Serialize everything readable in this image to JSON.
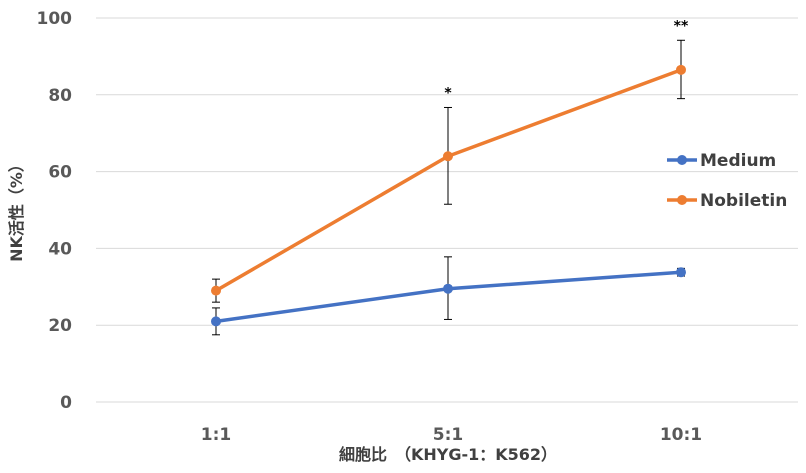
{
  "chart_data": {
    "type": "line",
    "title": "",
    "xlabel": "細胞比　（KHYG-1：K562）",
    "ylabel": "NK活性（%）",
    "categories": [
      "1:1",
      "5:1",
      "10:1"
    ],
    "ylim": [
      0,
      100
    ],
    "yticks": [
      0,
      20,
      40,
      60,
      80,
      100
    ],
    "grid": true,
    "legend_position": "right",
    "series": [
      {
        "name": "Medium",
        "color": "#4472C4",
        "values": [
          21,
          29.5,
          33.8
        ],
        "err_low": [
          3.5,
          8,
          1
        ],
        "err_high": [
          3.5,
          8.3,
          1
        ]
      },
      {
        "name": "Nobiletin",
        "color": "#ED7D31",
        "values": [
          29,
          64,
          86.5
        ],
        "err_low": [
          3,
          12.5,
          7.5
        ],
        "err_high": [
          3,
          12.7,
          7.7
        ]
      }
    ],
    "annotations": [
      {
        "category": "5:1",
        "text": "*"
      },
      {
        "category": "10:1",
        "text": "**"
      }
    ]
  }
}
